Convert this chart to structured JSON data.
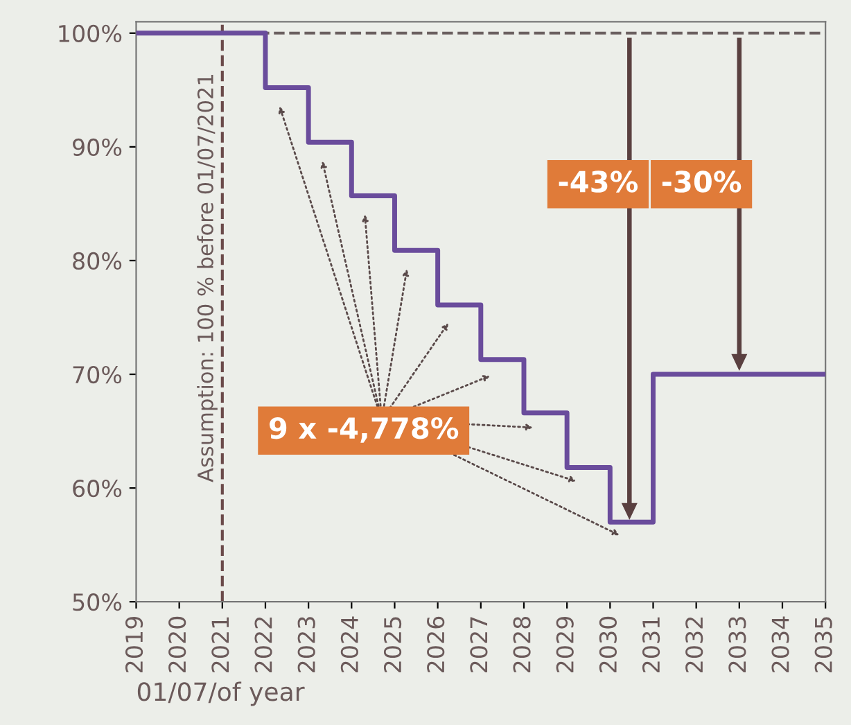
{
  "chart_data": {
    "type": "step",
    "xlabel": "01/07/of year",
    "x": [
      2019,
      2022,
      2023,
      2024,
      2025,
      2026,
      2027,
      2028,
      2029,
      2030,
      2031,
      2035
    ],
    "series": [
      {
        "color": "#6a4c9c",
        "values": [
          100,
          95.2,
          90.4,
          85.7,
          80.9,
          76.1,
          71.3,
          66.6,
          61.8,
          57.0,
          70,
          70
        ]
      }
    ],
    "xlim": [
      2019,
      2035
    ],
    "xticks": [
      2019,
      2020,
      2021,
      2022,
      2023,
      2024,
      2025,
      2026,
      2027,
      2028,
      2029,
      2030,
      2031,
      2032,
      2033,
      2034,
      2035
    ],
    "ylim": [
      50,
      101
    ],
    "yticks": [
      {
        "value": 50,
        "label": "50%"
      },
      {
        "value": 60,
        "label": "60%"
      },
      {
        "value": 70,
        "label": "70%"
      },
      {
        "value": 80,
        "label": "80%"
      },
      {
        "value": 90,
        "label": "90%"
      },
      {
        "value": 100,
        "label": "100%"
      }
    ],
    "ref_lines": [
      {
        "axis": "x",
        "value": 2021,
        "color": "#6b4a4a",
        "line_style": "dashed",
        "label": "Assumption: 100 % before 01/07/2021"
      },
      {
        "axis": "y",
        "value": 100,
        "color": "#6b6060",
        "line_style": "dashed"
      }
    ],
    "annotations": [
      "9 x -4,778%",
      "-43%",
      "-30%"
    ],
    "grid": false,
    "legend": false,
    "marker": "none",
    "line_style": "solid"
  }
}
